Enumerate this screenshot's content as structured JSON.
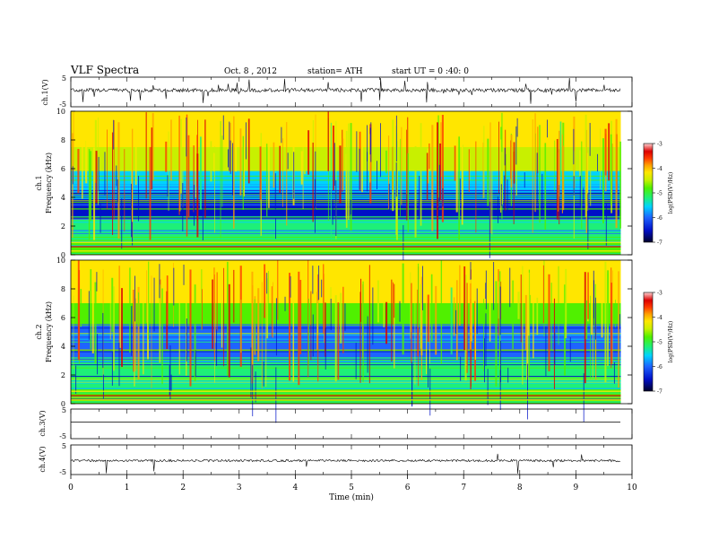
{
  "header": {
    "title": "VLF  Spectra",
    "date": "Oct. 8  , 2012",
    "station": "station= ATH",
    "start": "start  UT  =   0  :40: 0"
  },
  "chart_data": [
    {
      "type": "line",
      "channel": "ch.1",
      "ylabel": "ch.1(V)",
      "ylim": [
        -5,
        5
      ],
      "yticks": [
        "5",
        "-5"
      ],
      "xlim": [
        0,
        10
      ],
      "description_series": "noisy VLF waveform trace, baseline near -0.5 V with frequent spikes"
    },
    {
      "type": "heatmap",
      "channel": "ch.1",
      "ylabel": "ch.1\nFrequency  (kHz)",
      "ylabel_line1": "ch.1",
      "ylabel_line2": "Frequency  (kHz)",
      "ylim": [
        0,
        10
      ],
      "yticks": [
        "0",
        "2",
        "4",
        "6",
        "8",
        "10"
      ],
      "xlim": [
        0,
        9.8
      ],
      "colorbar": {
        "label": "log(PSD(V²/Hz)",
        "range": [
          -7,
          -3
        ],
        "ticks": [
          "-3",
          "-4",
          "-5",
          "-6",
          "-7"
        ]
      },
      "bands": [
        {
          "f_min": 0,
          "f_max": 1.0,
          "level": -5.2
        },
        {
          "f_min": 1.0,
          "f_max": 2.5,
          "level": -5.6
        },
        {
          "f_min": 2.5,
          "f_max": 4.5,
          "level": -6.5
        },
        {
          "f_min": 4.5,
          "f_max": 5.8,
          "level": -5.8
        },
        {
          "f_min": 5.8,
          "f_max": 7.5,
          "level": -5.0
        },
        {
          "f_min": 7.5,
          "f_max": 10,
          "level": -4.4
        }
      ]
    },
    {
      "type": "heatmap",
      "channel": "ch.2",
      "ylabel_line1": "ch.2",
      "ylabel_line2": "Frequency  (kHz)",
      "ylim": [
        0,
        10
      ],
      "yticks": [
        "0",
        "2",
        "4",
        "6",
        "8",
        "10"
      ],
      "xlim": [
        0,
        9.8
      ],
      "colorbar": {
        "label": "log(PSD(V²/Hz)",
        "range": [
          -7,
          -3
        ],
        "ticks": [
          "-3",
          "-4",
          "-5",
          "-6",
          "-7"
        ]
      },
      "bands": [
        {
          "f_min": 0,
          "f_max": 1.0,
          "level": -5.1
        },
        {
          "f_min": 1.0,
          "f_max": 3.0,
          "level": -5.6
        },
        {
          "f_min": 3.0,
          "f_max": 5.5,
          "level": -6.2
        },
        {
          "f_min": 5.5,
          "f_max": 7.0,
          "level": -5.3
        },
        {
          "f_min": 7.0,
          "f_max": 10,
          "level": -4.6
        }
      ]
    },
    {
      "type": "line",
      "channel": "ch.3",
      "ylabel": "ch.3(V)",
      "ylim": [
        -5,
        5
      ],
      "yticks": [
        "5",
        "-5"
      ],
      "xlim": [
        0,
        10
      ]
    },
    {
      "type": "line",
      "channel": "ch.4",
      "ylabel": "ch.4(V)",
      "ylim": [
        -5,
        5
      ],
      "yticks": [
        "5",
        "-5"
      ],
      "xlim": [
        0,
        10
      ]
    }
  ],
  "xaxis": {
    "label": "Time  (min)",
    "ticks": [
      "0",
      "1",
      "2",
      "3",
      "4",
      "5",
      "6",
      "7",
      "8",
      "9",
      "10"
    ]
  },
  "colors": {
    "colormap": [
      "#00002a",
      "#0010c8",
      "#1e64ff",
      "#00d2ff",
      "#1ef078",
      "#50f000",
      "#c8f000",
      "#ffe600",
      "#ffa000",
      "#ff3c00",
      "#dc0000",
      "#ffc8c8"
    ]
  }
}
